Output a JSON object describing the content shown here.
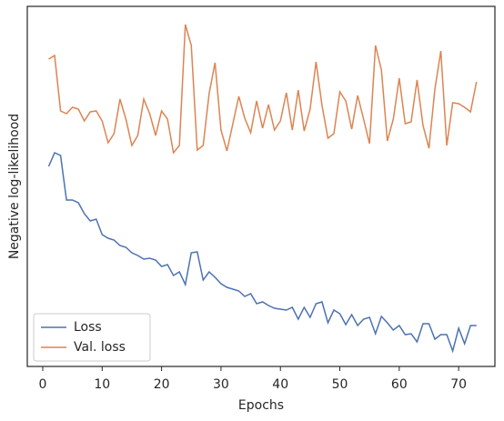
{
  "chart_data": {
    "type": "line",
    "xlabel": "Epochs",
    "ylabel": "Negative log-likelihood",
    "x": [
      1,
      2,
      3,
      4,
      5,
      6,
      7,
      8,
      9,
      10,
      11,
      12,
      13,
      14,
      15,
      16,
      17,
      18,
      19,
      20,
      21,
      22,
      23,
      24,
      25,
      26,
      27,
      28,
      29,
      30,
      31,
      32,
      33,
      34,
      35,
      36,
      37,
      38,
      39,
      40,
      41,
      42,
      43,
      44,
      45,
      46,
      47,
      48,
      49,
      50,
      51,
      52,
      53,
      54,
      55,
      56,
      57,
      58,
      59,
      60,
      61,
      62,
      63,
      64,
      65,
      66,
      67,
      68,
      69,
      70,
      71,
      72,
      73
    ],
    "series": [
      {
        "name": "Loss",
        "color": "#4c72b0",
        "values": [
          55,
          58.75,
          58,
          45.75,
          45.75,
          45,
          42,
          40,
          40.5,
          36.25,
          35.25,
          34.75,
          33.25,
          32.75,
          31.25,
          30.5,
          29.5,
          29.75,
          29.25,
          27.5,
          28,
          25,
          26,
          22.5,
          31.25,
          31.5,
          23.75,
          26,
          24.5,
          22.75,
          21.75,
          21.25,
          20.75,
          19.25,
          20,
          17.25,
          17.75,
          16.75,
          16,
          15.75,
          15.5,
          16.25,
          13,
          16.25,
          13.5,
          17.25,
          17.75,
          12,
          15.5,
          14.5,
          11.5,
          14.25,
          11.25,
          13,
          13.5,
          9,
          13.75,
          12,
          10,
          11.25,
          8.75,
          9,
          6.75,
          11.75,
          11.75,
          7.5,
          8.75,
          8.75,
          4.25,
          10.5,
          6.25,
          11.25,
          11.25
        ]
      },
      {
        "name": "Val. loss",
        "color": "#dd8452",
        "values": [
          84.5,
          85.5,
          70.25,
          69.5,
          71.25,
          70.75,
          67.5,
          70,
          70.25,
          67.5,
          61.5,
          64,
          73.5,
          68,
          60.75,
          63.5,
          73.5,
          69.5,
          63.5,
          70.25,
          68,
          58.75,
          60.75,
          94,
          88.25,
          59.5,
          60.75,
          75,
          83.5,
          65,
          59.25,
          66.75,
          74.25,
          68.25,
          64.25,
          73,
          65.5,
          72,
          65,
          67.5,
          75.25,
          65,
          76,
          64.75,
          70.75,
          83.75,
          71.75,
          62.75,
          64,
          75.5,
          73,
          65.25,
          74.5,
          68,
          61.25,
          88.25,
          81.5,
          62,
          68,
          79.25,
          66.75,
          67.25,
          78.75,
          66.25,
          60,
          76.25,
          86.75,
          60.75,
          72.5,
          72.25,
          71.25,
          70,
          78.25
        ]
      }
    ],
    "xlim": [
      -2.6,
      76.1
    ],
    "xticks": [
      0,
      10,
      20,
      30,
      40,
      50,
      60,
      70
    ],
    "ylim": [
      0,
      99
    ],
    "legend": "lower left"
  }
}
